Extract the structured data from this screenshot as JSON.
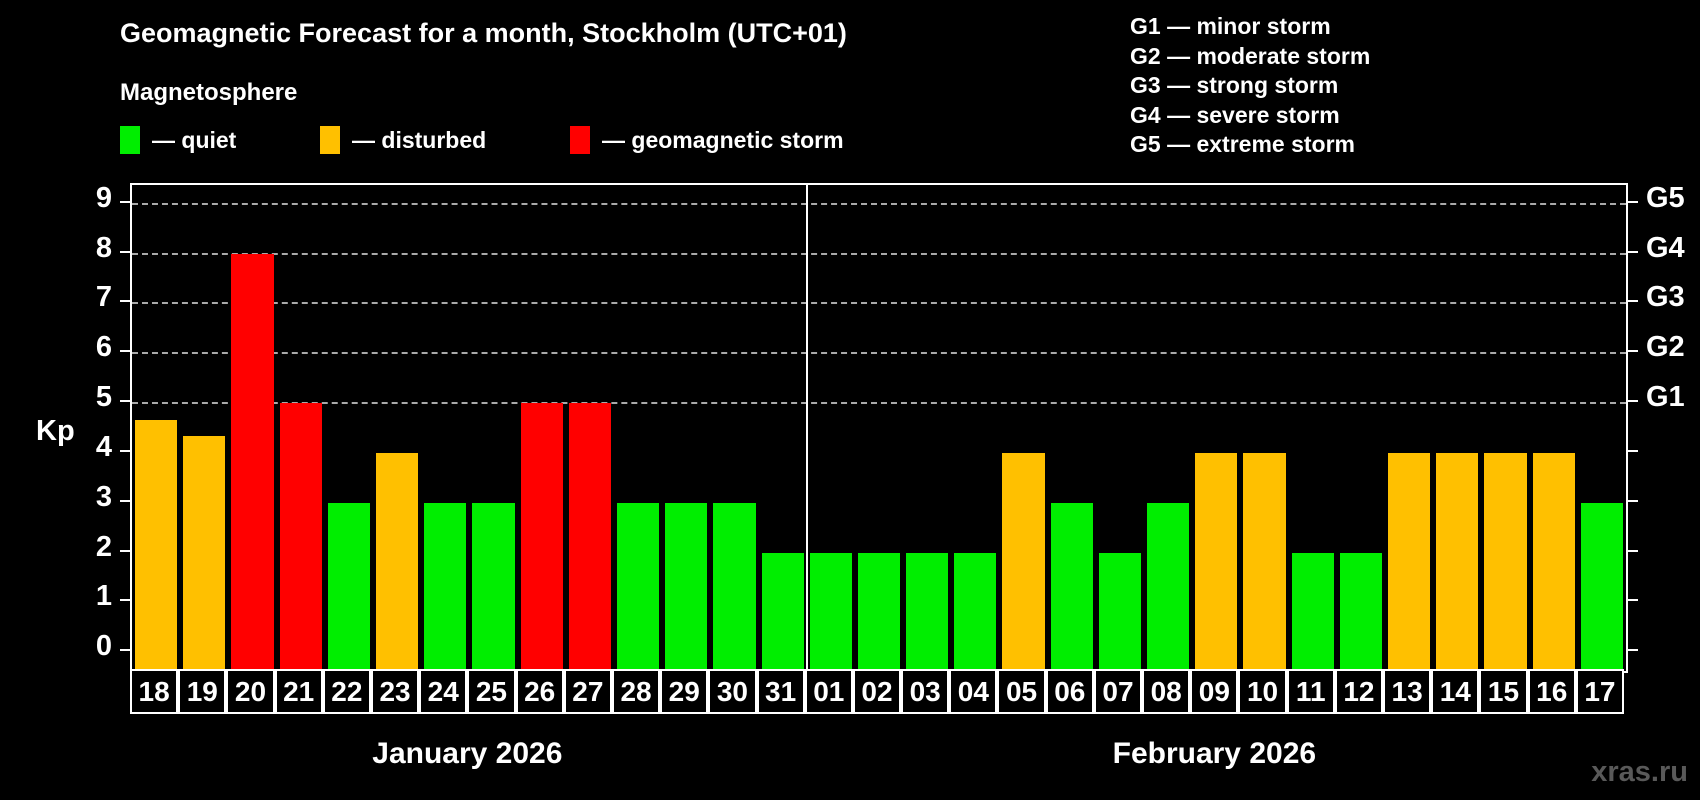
{
  "title": "Geomagnetic Forecast for a month, Stockholm (UTC+01)",
  "subtitle": "Magnetosphere",
  "legend": {
    "quiet_label": "— quiet",
    "disturbed_label": "— disturbed",
    "storm_label": "— geomagnetic storm"
  },
  "g_scale_legend": [
    "G1 — minor storm",
    "G2 — moderate storm",
    "G3 — strong storm",
    "G4 — severe storm",
    "G5 — extreme storm"
  ],
  "watermark": "xras.ru",
  "colors": {
    "quiet": "#00ee00",
    "disturbed": "#ffc000",
    "storm": "#ff0000",
    "grid": "#a9a9a9",
    "axis": "#ffffff"
  },
  "chart_data": {
    "type": "bar",
    "title": "Geomagnetic Forecast for a month, Stockholm (UTC+01)",
    "ylabel": "Kp",
    "ylim": [
      -0.375,
      9.375
    ],
    "y_ticks": [
      0,
      1,
      2,
      3,
      4,
      5,
      6,
      7,
      8,
      9
    ],
    "gridlines_kp": [
      5,
      6,
      7,
      8,
      9
    ],
    "grid": "dashed horizontal at storm levels only",
    "legend_position": "top",
    "right_axis_levels": [
      {
        "label": "G1",
        "kp": 5
      },
      {
        "label": "G2",
        "kp": 6
      },
      {
        "label": "G3",
        "kp": 7
      },
      {
        "label": "G4",
        "kp": 8
      },
      {
        "label": "G5",
        "kp": 9
      }
    ],
    "months": [
      {
        "label": "January 2026",
        "days": 14
      },
      {
        "label": "February 2026",
        "days": 17
      }
    ],
    "bars": [
      {
        "day": "18",
        "kp": 4.67,
        "level": "disturbed"
      },
      {
        "day": "19",
        "kp": 4.33,
        "level": "disturbed"
      },
      {
        "day": "20",
        "kp": 8,
        "level": "storm"
      },
      {
        "day": "21",
        "kp": 5,
        "level": "storm"
      },
      {
        "day": "22",
        "kp": 3,
        "level": "quiet"
      },
      {
        "day": "23",
        "kp": 4,
        "level": "disturbed"
      },
      {
        "day": "24",
        "kp": 3,
        "level": "quiet"
      },
      {
        "day": "25",
        "kp": 3,
        "level": "quiet"
      },
      {
        "day": "26",
        "kp": 5,
        "level": "storm"
      },
      {
        "day": "27",
        "kp": 5,
        "level": "storm"
      },
      {
        "day": "28",
        "kp": 3,
        "level": "quiet"
      },
      {
        "day": "29",
        "kp": 3,
        "level": "quiet"
      },
      {
        "day": "30",
        "kp": 3,
        "level": "quiet"
      },
      {
        "day": "31",
        "kp": 2,
        "level": "quiet"
      },
      {
        "day": "01",
        "kp": 2,
        "level": "quiet"
      },
      {
        "day": "02",
        "kp": 2,
        "level": "quiet"
      },
      {
        "day": "03",
        "kp": 2,
        "level": "quiet"
      },
      {
        "day": "04",
        "kp": 2,
        "level": "quiet"
      },
      {
        "day": "05",
        "kp": 4,
        "level": "disturbed"
      },
      {
        "day": "06",
        "kp": 3,
        "level": "quiet"
      },
      {
        "day": "07",
        "kp": 2,
        "level": "quiet"
      },
      {
        "day": "08",
        "kp": 3,
        "level": "quiet"
      },
      {
        "day": "09",
        "kp": 4,
        "level": "disturbed"
      },
      {
        "day": "10",
        "kp": 4,
        "level": "disturbed"
      },
      {
        "day": "11",
        "kp": 2,
        "level": "quiet"
      },
      {
        "day": "12",
        "kp": 2,
        "level": "quiet"
      },
      {
        "day": "13",
        "kp": 4,
        "level": "disturbed"
      },
      {
        "day": "14",
        "kp": 4,
        "level": "disturbed"
      },
      {
        "day": "15",
        "kp": 4,
        "level": "disturbed"
      },
      {
        "day": "16",
        "kp": 4,
        "level": "disturbed"
      },
      {
        "day": "17",
        "kp": 3,
        "level": "quiet"
      }
    ]
  }
}
